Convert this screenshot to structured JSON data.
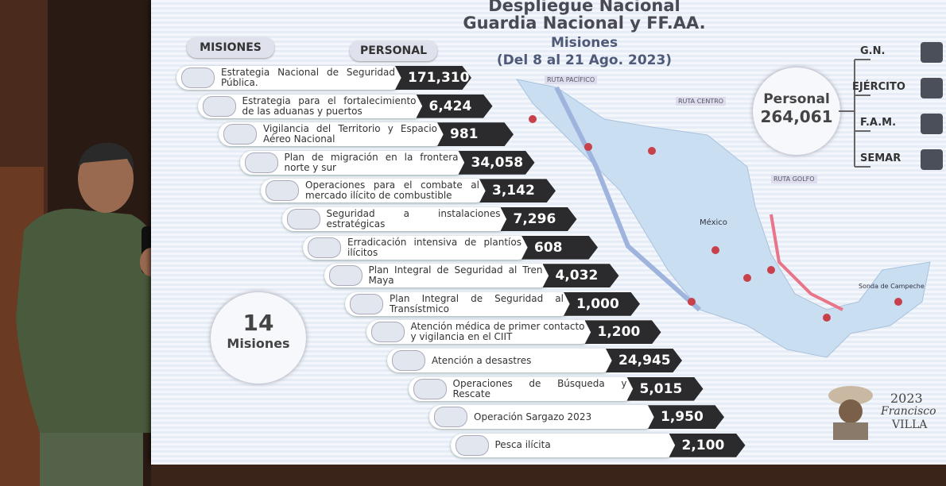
{
  "slide": {
    "title_line1": "Despliegue Nacional",
    "title_line2": "Guardia Nacional y FF.AA.",
    "subtitle": "Misiones",
    "dates": "(Del 8 al 21 Ago. 2023)",
    "header_missions": "MISIONES",
    "header_personal": "PERSONAL",
    "missions": [
      {
        "label": "Estrategia Nacional de Seguridad Pública.",
        "personal": "171,310"
      },
      {
        "label": "Estrategia para el fortalecimiento de las aduanas y puertos",
        "personal": "6,424"
      },
      {
        "label": "Vigilancia del Territorio y Espacio Aéreo Nacional",
        "personal": "981"
      },
      {
        "label": "Plan de migración en la frontera norte y sur",
        "personal": "34,058"
      },
      {
        "label": "Operaciones para el combate al mercado ilícito de combustible",
        "personal": "3,142"
      },
      {
        "label": "Seguridad a instalaciones estratégicas",
        "personal": "7,296"
      },
      {
        "label": "Erradicación intensiva de plantíos ilícitos",
        "personal": "608"
      },
      {
        "label": "Plan Integral de Seguridad al Tren Maya",
        "personal": "4,032"
      },
      {
        "label": "Plan Integral de Seguridad al Transístmico",
        "personal": "1,000"
      },
      {
        "label": "Atención médica de primer contacto y vigilancia en el CIIT",
        "personal": "1,200"
      },
      {
        "label": "Atención a desastres",
        "personal": "24,945"
      },
      {
        "label": "Operaciones de Búsqueda y Rescate",
        "personal": "5,015"
      },
      {
        "label": "Operación Sargazo 2023",
        "personal": "1,950"
      },
      {
        "label": "Pesca ilícita",
        "personal": "2,100"
      }
    ],
    "count_number": "14",
    "count_label": "Misiones",
    "total_label": "Personal",
    "total_value": "264,061",
    "forces": [
      "G.N.",
      "EJÉRCITO",
      "F.A.M.",
      "SEMAR"
    ],
    "routes": [
      "RUTA PACÍFICO",
      "RUTA CENTRO",
      "RUTA GOLFO"
    ],
    "map_labels": [
      "México",
      "Sonda de Campeche"
    ],
    "logo": {
      "year": "2023",
      "line1": "Francisco",
      "line2": "VILLA"
    }
  }
}
